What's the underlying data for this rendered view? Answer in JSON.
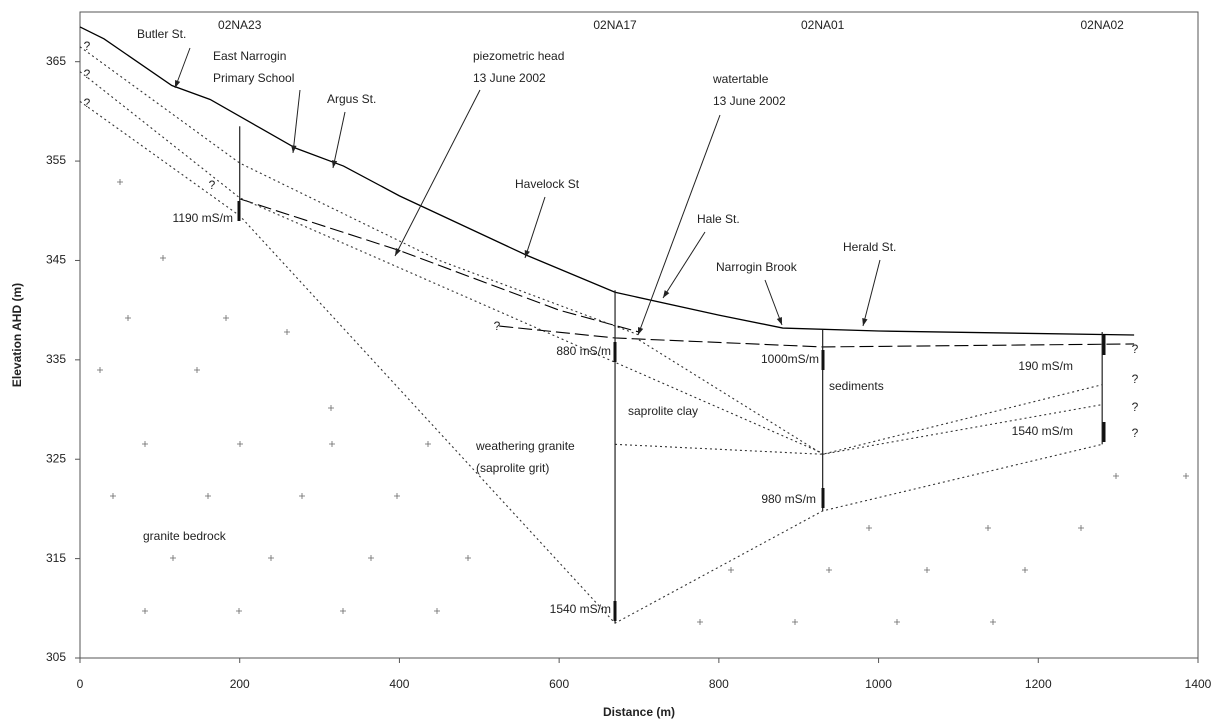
{
  "chart_data": {
    "type": "line",
    "xlabel": "Distance (m)",
    "ylabel": "Elevation AHD (m)",
    "xlim": [
      0,
      1400
    ],
    "ylim": [
      305,
      370
    ],
    "xticks": [
      0,
      200,
      400,
      600,
      800,
      1000,
      1200,
      1400
    ],
    "yticks": [
      305,
      315,
      325,
      335,
      345,
      355,
      365
    ],
    "grid": false,
    "series": [
      {
        "dash": "solid",
        "color": "#000000",
        "x": [
          0,
          30,
          115,
          163,
          270,
          330,
          400,
          560,
          670,
          800,
          880,
          1000,
          1320
        ],
        "values": [
          368.5,
          367.3,
          362.6,
          361.2,
          356.3,
          354.5,
          351.5,
          345.5,
          341.8,
          339.5,
          338.2,
          337.9,
          337.5
        ]
      },
      {
        "dash": "dashed",
        "color": "#000000",
        "x": [
          200,
          400,
          600,
          700
        ],
        "values": [
          351.2,
          346,
          340,
          337.8
        ]
      },
      {
        "dash": "dashed",
        "color": "#000000",
        "x": [
          525,
          670,
          930,
          1320
        ],
        "values": [
          338.4,
          337.2,
          336.3,
          336.6
        ]
      },
      {
        "dash": "dotted",
        "color": "#333333",
        "x": [
          0,
          200,
          450,
          700
        ],
        "values": [
          366.5,
          354.8,
          345,
          337.5
        ]
      },
      {
        "dash": "dotted",
        "color": "#333333",
        "x": [
          0,
          200,
          930
        ],
        "values": [
          364,
          351.3,
          325.6
        ]
      },
      {
        "dash": "dotted",
        "color": "#333333",
        "x": [
          0,
          200,
          670,
          930,
          1280
        ],
        "values": [
          361,
          349.5,
          308.5,
          319.8,
          326.5
        ]
      },
      {
        "dash": "dotted",
        "color": "#333333",
        "x": [
          670,
          930,
          1280
        ],
        "values": [
          326.5,
          325.5,
          332.5
        ]
      },
      {
        "dash": "dotted",
        "color": "#333333",
        "x": [
          930,
          1280
        ],
        "values": [
          325.5,
          330.5
        ]
      },
      {
        "dash": "dotted",
        "color": "#333333",
        "x": [
          700,
          930
        ],
        "values": [
          337,
          325.5
        ]
      }
    ],
    "bores": [
      {
        "label": "02NA23",
        "x": 200,
        "top": 358.5,
        "bottom": 349.3
      },
      {
        "label": "02NA17",
        "x": 670,
        "top": 342,
        "bottom": 308.5
      },
      {
        "label": "02NA01",
        "x": 930,
        "top": 338,
        "bottom": 319.8
      },
      {
        "label": "02NA02",
        "x": 1280,
        "top": 337.8,
        "bottom": 326.5
      }
    ],
    "annotations": [
      {
        "text": [
          "Butler St."
        ]
      },
      {
        "text": [
          "East Narrogin",
          "Primary School"
        ]
      },
      {
        "text": [
          "Argus St."
        ]
      },
      {
        "text": [
          "piezometric head",
          "13 June 2002"
        ]
      },
      {
        "text": [
          "watertable",
          "13 June 2002"
        ]
      },
      {
        "text": [
          "Havelock St"
        ]
      },
      {
        "text": [
          "Hale St."
        ]
      },
      {
        "text": [
          "Narrogin Brook"
        ]
      },
      {
        "text": [
          "Herald St."
        ]
      },
      {
        "text": [
          "saprolite clay"
        ]
      },
      {
        "text": [
          "sediments"
        ]
      },
      {
        "text": [
          "weathering granite",
          "(saprolite grit)"
        ]
      },
      {
        "text": [
          "granite bedrock"
        ]
      }
    ],
    "conductivity_labels": [
      "1190 mS/m",
      "880 mS/m",
      "1000mS/m",
      "190 mS/m",
      "1540 mS/m",
      "980 mS/m",
      "1540 mS/m"
    ],
    "question_marks": [
      "?",
      "?",
      "?",
      "?",
      "?",
      "?",
      "?",
      "?",
      "?"
    ]
  }
}
